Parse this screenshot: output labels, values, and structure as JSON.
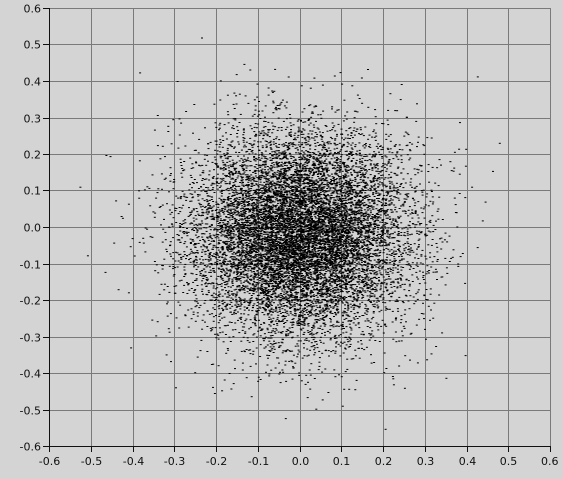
{
  "chart_data": {
    "type": "scatter",
    "title": "",
    "xlabel": "",
    "ylabel": "",
    "xlim": [
      -0.6,
      0.6
    ],
    "ylim": [
      -0.6,
      0.6
    ],
    "grid": true,
    "legend": "none",
    "x_ticks": [
      "-0.6",
      "-0.5",
      "-0.4",
      "-0.3",
      "-0.2",
      "-0.1",
      "0.0",
      "0.1",
      "0.2",
      "0.3",
      "0.4",
      "0.5",
      "0.6"
    ],
    "y_ticks": [
      "0.6",
      "0.5",
      "0.4",
      "0.3",
      "0.2",
      "0.1",
      "0.0",
      "-0.1",
      "-0.2",
      "-0.3",
      "-0.4",
      "-0.5",
      "-0.6"
    ],
    "distribution": {
      "center": [
        0.0,
        -0.02
      ],
      "std": [
        0.13,
        0.14
      ],
      "point_count": 12000
    },
    "colors": {
      "background": "#d4d4d4",
      "plot_area": "#d4d4d4",
      "grid": "#7a7a7a",
      "points": "#000000",
      "axis": "#111111"
    }
  }
}
